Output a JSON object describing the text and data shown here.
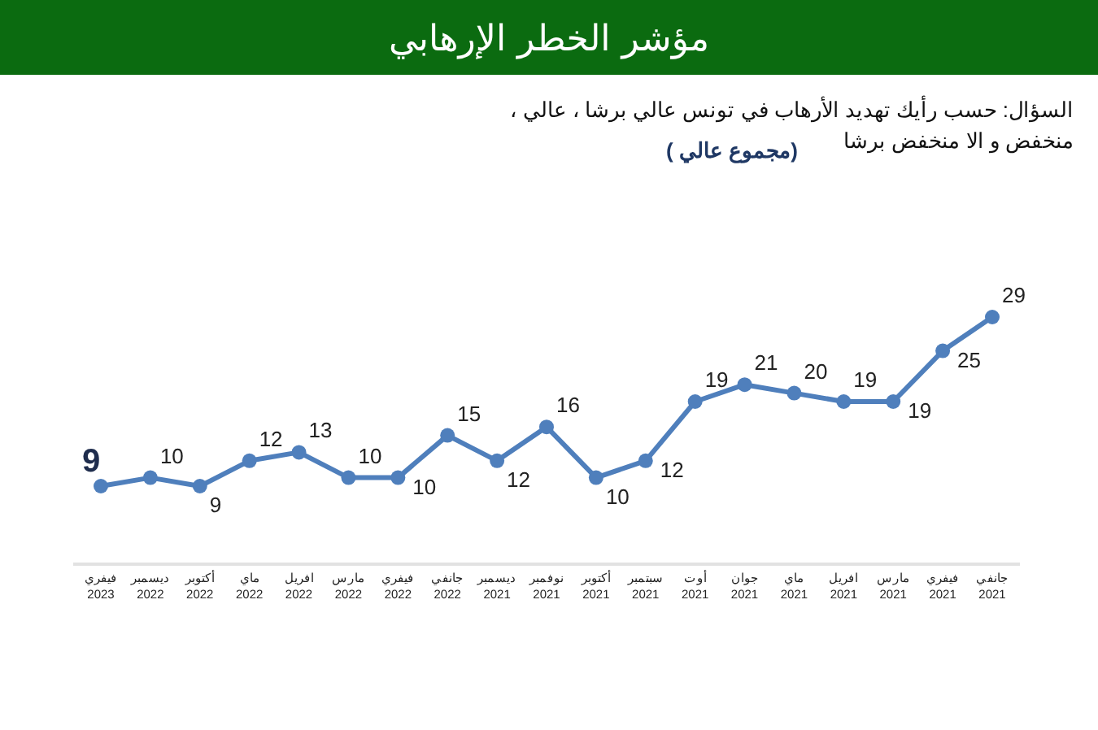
{
  "chart_data": {
    "type": "line",
    "title": "مؤشر الخطر الإرهابي",
    "subtitle": "السؤال: حسب رأيك تهديد الأرهاب في تونس عالي برشا ، عالي ، منخفض و الا منخفض برشا",
    "annotations": [
      "(مجموع عالي )"
    ],
    "categories": [
      "فيفري 2023",
      "ديسمبر 2022",
      "أكتوبر 2022",
      "ماي 2022",
      "افريل 2022",
      "مارس 2022",
      "فيفري 2022",
      "جانفي 2022",
      "ديسمبر 2021",
      "نوفمبر 2021",
      "أكتوبر 2021",
      "سبتمبر 2021",
      "أوت 2021",
      "جوان 2021",
      "ماي 2021",
      "افريل 2021",
      "مارس 2021",
      "فيفري 2021",
      "جانفي 2021"
    ],
    "series": [
      {
        "color": "#4f7fbc",
        "values": [
          9,
          10,
          9,
          12,
          13,
          10,
          10,
          15,
          12,
          16,
          10,
          12,
          19,
          21,
          20,
          19,
          19,
          25,
          29
        ]
      }
    ],
    "data_labels": true,
    "marker": "circle",
    "line_style": "solid"
  }
}
